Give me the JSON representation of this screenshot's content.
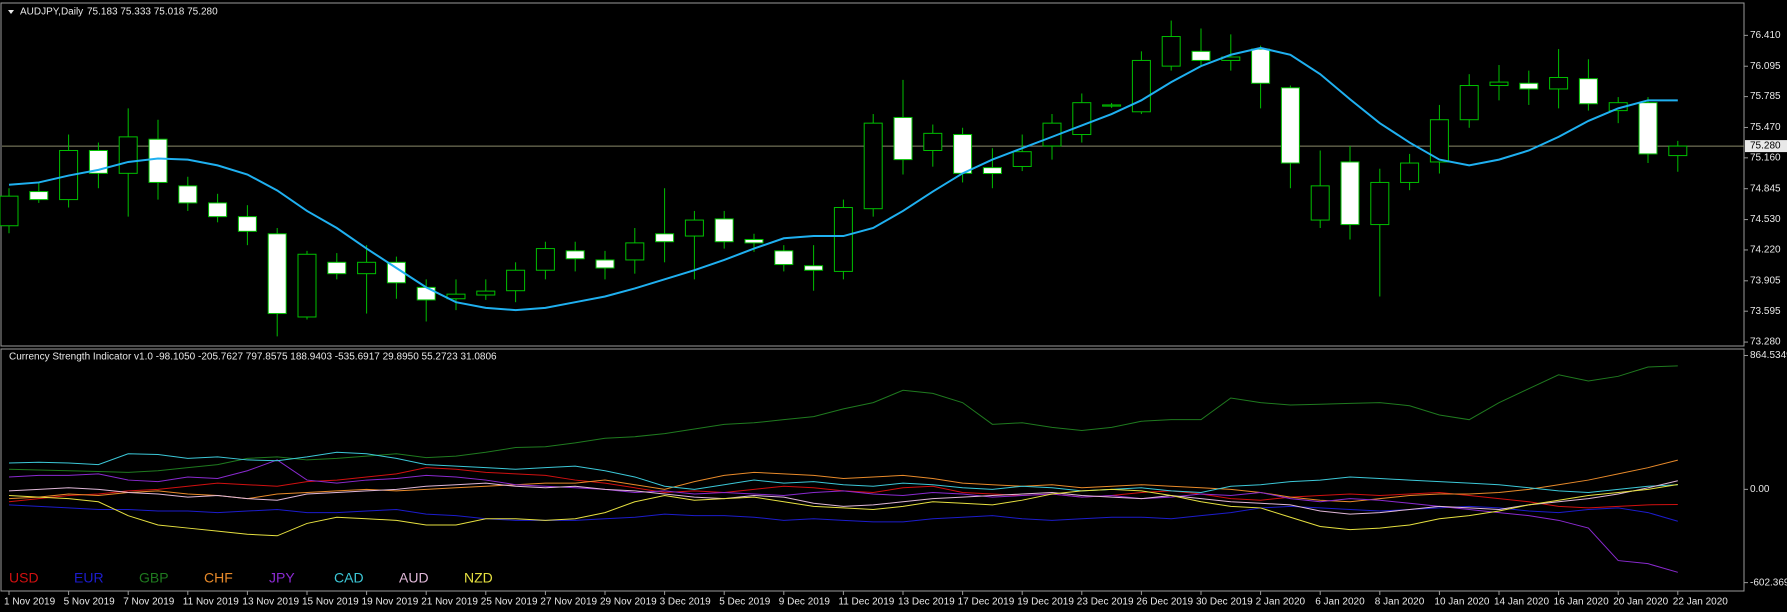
{
  "chart_data": [
    {
      "type": "candlestick",
      "title": "AUDJPY,Daily",
      "subtitle": "75.183 75.333 75.018 75.280",
      "x": [
        "1 Nov 2019",
        null,
        "5 Nov 2019",
        null,
        "7 Nov 2019",
        null,
        "11 Nov 2019",
        null,
        "13 Nov 2019",
        null,
        "15 Nov 2019",
        null,
        "19 Nov 2019",
        null,
        "21 Nov 2019",
        null,
        "25 Nov 2019",
        null,
        "27 Nov 2019",
        null,
        "29 Nov 2019",
        null,
        "3 Dec 2019",
        null,
        "5 Dec 2019",
        null,
        "9 Dec 2019",
        null,
        "11 Dec 2019",
        null,
        "13 Dec 2019",
        null,
        "17 Dec 2019",
        null,
        "19 Dec 2019",
        null,
        "23 Dec 2019",
        null,
        "26 Dec 2019",
        null,
        "30 Dec 2019",
        null,
        "2 Jan 2020",
        null,
        "6 Jan 2020",
        null,
        "8 Jan 2020",
        null,
        "10 Jan 2020",
        null,
        "14 Jan 2020",
        null,
        "16 Jan 2020",
        null,
        "20 Jan 2020",
        null,
        "22 Jan 2020"
      ],
      "open": [
        74.467,
        74.816,
        74.734,
        75.235,
        75.002,
        75.35,
        74.874,
        74.7,
        74.56,
        74.385,
        73.536,
        74.094,
        73.978,
        74.094,
        73.838,
        73.722,
        73.76,
        73.804,
        74.013,
        74.211,
        74.118,
        74.118,
        74.385,
        74.362,
        74.537,
        74.327,
        74.211,
        74.059,
        74.001,
        74.641,
        75.572,
        75.235,
        75.398,
        75.06,
        75.072,
        75.281,
        75.398,
        75.688,
        75.63,
        76.096,
        76.247,
        76.154,
        76.27,
        75.875,
        74.525,
        75.118,
        74.479,
        74.909,
        75.118,
        75.549,
        75.898,
        75.921,
        75.863,
        75.968,
        75.642,
        75.723,
        75.183
      ],
      "high": [
        74.85,
        74.909,
        75.398,
        75.316,
        75.665,
        75.549,
        74.967,
        74.793,
        74.677,
        74.444,
        74.211,
        74.188,
        74.269,
        74.152,
        73.92,
        73.92,
        73.92,
        74.094,
        74.304,
        74.304,
        74.211,
        74.444,
        74.85,
        74.618,
        74.618,
        74.385,
        74.269,
        74.269,
        74.734,
        75.607,
        75.956,
        75.5,
        75.467,
        75.258,
        75.398,
        75.607,
        75.817,
        75.72,
        76.247,
        76.561,
        76.48,
        76.42,
        76.305,
        75.898,
        75.235,
        75.281,
        75.049,
        75.2,
        75.7,
        76.014,
        76.108,
        76.05,
        76.27,
        76.166,
        75.78,
        75.78,
        75.333
      ],
      "low": [
        74.39,
        74.7,
        74.653,
        74.85,
        74.56,
        74.734,
        74.618,
        74.502,
        74.269,
        73.338,
        73.51,
        73.92,
        73.571,
        73.722,
        73.49,
        73.606,
        73.71,
        73.687,
        73.92,
        74.001,
        73.92,
        73.978,
        74.094,
        73.92,
        74.234,
        74.2,
        74.001,
        73.804,
        73.92,
        74.56,
        74.99,
        75.07,
        74.909,
        74.85,
        75.025,
        75.142,
        75.316,
        75.67,
        75.607,
        76.05,
        76.096,
        76.05,
        75.665,
        74.85,
        74.444,
        74.327,
        73.745,
        74.83,
        75.0,
        75.467,
        75.747,
        75.7,
        75.665,
        75.642,
        75.514,
        75.107,
        75.018
      ],
      "close": [
        74.769,
        74.734,
        75.235,
        75.002,
        75.374,
        74.909,
        74.7,
        74.56,
        74.41,
        73.571,
        74.176,
        73.978,
        74.094,
        73.885,
        73.71,
        73.769,
        73.8,
        74.013,
        74.234,
        74.13,
        74.036,
        74.292,
        74.304,
        74.525,
        74.304,
        74.292,
        74.071,
        74.013,
        74.653,
        75.514,
        75.142,
        75.41,
        75.002,
        75.0,
        75.223,
        75.514,
        75.723,
        75.7,
        76.154,
        76.398,
        76.154,
        76.189,
        75.921,
        75.107,
        74.874,
        74.479,
        74.909,
        75.107,
        75.549,
        75.898,
        75.933,
        75.863,
        75.98,
        75.712,
        75.723,
        75.2,
        75.28
      ],
      "up_color": "#000000",
      "down_color": "#ffffff",
      "edge_color": "#00c000",
      "overlay": {
        "color": "#1fb0f0",
        "values": [
          74.886,
          74.909,
          74.979,
          75.037,
          75.118,
          75.153,
          75.142,
          75.083,
          74.99,
          74.827,
          74.618,
          74.444,
          74.234,
          74.036,
          73.838,
          73.687,
          73.629,
          73.606,
          73.629,
          73.687,
          73.745,
          73.827,
          73.92,
          74.013,
          74.118,
          74.234,
          74.339,
          74.362,
          74.362,
          74.444,
          74.618,
          74.816,
          75.002,
          75.142,
          75.258,
          75.374,
          75.491,
          75.607,
          75.747,
          75.933,
          76.096,
          76.212,
          76.282,
          76.212,
          76.014,
          75.758,
          75.514,
          75.316,
          75.142,
          75.083,
          75.142,
          75.235,
          75.374,
          75.537,
          75.665,
          75.747,
          75.747
        ]
      },
      "current_price": {
        "value": 75.28,
        "label": "75.280"
      },
      "ylim": [
        73.25,
        76.73
      ],
      "yticks": [
        {
          "value": 76.41,
          "label": "76.410"
        },
        76.095,
        75.785,
        {
          "value": 75.47,
          "label": "75.470"
        },
        {
          "value": 75.16,
          "label": "75.160"
        },
        74.845,
        {
          "value": 74.53,
          "label": "74.530"
        },
        {
          "value": 74.22,
          "label": "74.220"
        },
        73.905,
        73.595,
        {
          "value": 73.28,
          "label": "73.280"
        }
      ]
    },
    {
      "type": "line",
      "title": "Currency Strength Indicator v1.0 -98.1050 -205.7627 797.8575 188.9403 -535.6917 29.8950 55.2723 31.0806",
      "ylim": [
        -650,
        900
      ],
      "yticks": [
        864.5349,
        {
          "value": 0,
          "label": "0.00"
        },
        -602.369
      ],
      "series": [
        {
          "name": "USD",
          "color": "#d01010",
          "values": [
            -80,
            -60,
            -40,
            -30,
            -10,
            0,
            20,
            40,
            30,
            20,
            50,
            60,
            80,
            100,
            140,
            130,
            110,
            100,
            90,
            60,
            40,
            10,
            -20,
            -10,
            -20,
            0,
            20,
            10,
            -10,
            -20,
            10,
            20,
            -20,
            -30,
            -40,
            -30,
            -50,
            -40,
            -20,
            -10,
            -30,
            -60,
            -70,
            -50,
            -40,
            -30,
            -40,
            -30,
            -20,
            -40,
            -60,
            -80,
            -110,
            -120,
            -110,
            -100,
            -98.105
          ]
        },
        {
          "name": "EUR",
          "color": "#1c1ccc",
          "values": [
            -100,
            -110,
            -120,
            -130,
            -130,
            -140,
            -140,
            -150,
            -140,
            -130,
            -150,
            -150,
            -140,
            -130,
            -160,
            -170,
            -190,
            -200,
            -200,
            -200,
            -190,
            -180,
            -160,
            -170,
            -170,
            -180,
            -200,
            -190,
            -200,
            -210,
            -210,
            -190,
            -180,
            -170,
            -190,
            -200,
            -190,
            -180,
            -180,
            -190,
            -170,
            -150,
            -120,
            -110,
            -120,
            -130,
            -140,
            -130,
            -120,
            -110,
            -120,
            -140,
            -150,
            -130,
            -120,
            -150,
            -205.7627
          ]
        },
        {
          "name": "GBP",
          "color": "#1f7a1f",
          "values": [
            130,
            125,
            120,
            115,
            110,
            120,
            140,
            160,
            200,
            210,
            190,
            200,
            215,
            230,
            205,
            215,
            240,
            270,
            275,
            300,
            330,
            340,
            360,
            390,
            420,
            430,
            450,
            470,
            520,
            560,
            640,
            620,
            560,
            420,
            430,
            400,
            380,
            400,
            440,
            450,
            450,
            590,
            560,
            545,
            550,
            555,
            560,
            540,
            480,
            450,
            560,
            650,
            740,
            700,
            730,
            790,
            797.8575
          ]
        },
        {
          "name": "CHF",
          "color": "#e88a2a",
          "values": [
            -60,
            -50,
            -30,
            -40,
            -20,
            -10,
            -30,
            -40,
            -60,
            -30,
            -20,
            -10,
            0,
            -10,
            0,
            10,
            20,
            30,
            40,
            40,
            60,
            30,
            0,
            50,
            90,
            110,
            100,
            90,
            70,
            80,
            90,
            70,
            40,
            30,
            20,
            30,
            10,
            20,
            30,
            20,
            10,
            0,
            -20,
            -50,
            -70,
            -80,
            -60,
            -40,
            -30,
            -30,
            -20,
            0,
            30,
            60,
            100,
            140,
            188.9403
          ]
        },
        {
          "name": "JPY",
          "color": "#8a2ad0",
          "values": [
            80,
            90,
            90,
            100,
            60,
            50,
            80,
            70,
            120,
            190,
            60,
            40,
            60,
            70,
            90,
            80,
            60,
            30,
            20,
            10,
            0,
            -20,
            -10,
            -30,
            -20,
            -30,
            -40,
            -20,
            -10,
            -30,
            -40,
            -20,
            -30,
            -50,
            -40,
            -30,
            -50,
            -40,
            -60,
            -50,
            -30,
            -40,
            -20,
            -60,
            -80,
            -60,
            -70,
            -90,
            -110,
            -130,
            -150,
            -170,
            -200,
            -250,
            -460,
            -480,
            -535.6917
          ]
        },
        {
          "name": "CAD",
          "color": "#3cc8d8",
          "values": [
            170,
            175,
            170,
            160,
            230,
            225,
            200,
            210,
            190,
            185,
            210,
            240,
            230,
            200,
            160,
            150,
            140,
            130,
            140,
            150,
            120,
            80,
            20,
            0,
            30,
            60,
            40,
            50,
            30,
            20,
            40,
            30,
            10,
            0,
            20,
            10,
            -10,
            0,
            10,
            -10,
            -20,
            20,
            30,
            50,
            60,
            80,
            70,
            60,
            50,
            40,
            30,
            10,
            -10,
            -20,
            0,
            20,
            29.895
          ]
        },
        {
          "name": "AUD",
          "color": "#e0b8d8",
          "values": [
            -10,
            0,
            10,
            0,
            -20,
            -30,
            -50,
            -40,
            -60,
            -70,
            -30,
            -20,
            -10,
            0,
            20,
            30,
            40,
            20,
            10,
            20,
            0,
            -10,
            -30,
            -50,
            -60,
            -40,
            -50,
            -90,
            -110,
            -100,
            -80,
            -60,
            -50,
            -40,
            -30,
            -20,
            -40,
            -50,
            -60,
            -40,
            -60,
            -80,
            -90,
            -100,
            -140,
            -160,
            -150,
            -130,
            -110,
            -120,
            -130,
            -100,
            -80,
            -60,
            -30,
            10,
            55.2723
          ]
        },
        {
          "name": "NZD",
          "color": "#e6e040",
          "values": [
            -40,
            -50,
            -60,
            -80,
            -170,
            -230,
            -250,
            -270,
            -290,
            -300,
            -220,
            -180,
            -190,
            -200,
            -230,
            -230,
            -190,
            -190,
            -200,
            -190,
            -150,
            -80,
            -40,
            -70,
            -60,
            -50,
            -80,
            -110,
            -120,
            -130,
            -110,
            -80,
            -90,
            -100,
            -70,
            -30,
            -10,
            0,
            -10,
            -40,
            -80,
            -110,
            -120,
            -180,
            -240,
            -260,
            -250,
            -230,
            -190,
            -170,
            -140,
            -100,
            -70,
            -40,
            -20,
            0,
            31.0806
          ]
        }
      ]
    }
  ]
}
